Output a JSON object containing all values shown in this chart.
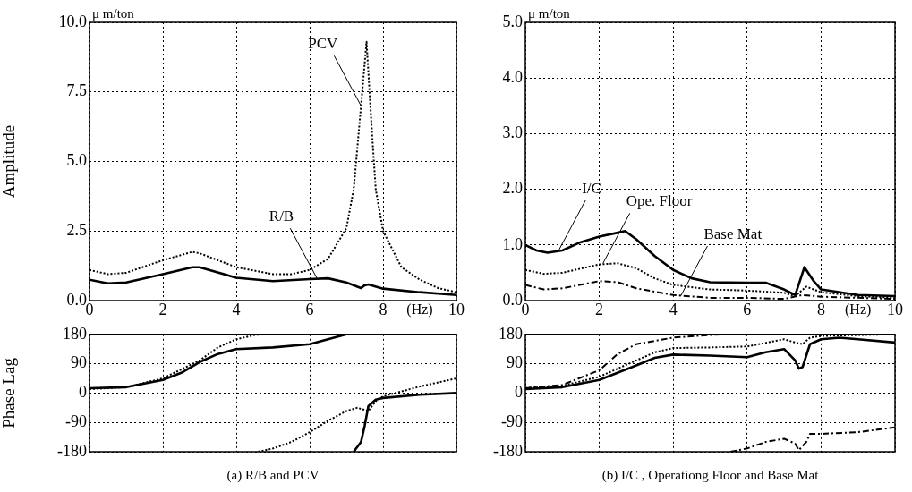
{
  "chart_data": [
    {
      "type": "line",
      "ylabel": "Amplitude",
      "xlabel": "(Hz)",
      "xlim": [
        0,
        10
      ],
      "xticks": [
        0,
        2,
        4,
        6,
        8,
        10
      ],
      "ylim": [
        0,
        10
      ],
      "yticks": [
        {
          "value": 0,
          "label": "0.0"
        },
        {
          "value": 2.5,
          "label": "2.5"
        },
        {
          "value": 5,
          "label": "5.0"
        },
        {
          "value": 7.5,
          "label": "7.5"
        },
        {
          "value": 10,
          "label": "10.0"
        }
      ],
      "grid": true,
      "marker": "none",
      "annotations": [
        "μ m/ton",
        {
          "text": "PCV",
          "x": 7.4,
          "y": 7
        },
        {
          "text": "R/B",
          "x": 6.2,
          "y": 0.8
        }
      ],
      "series": [
        {
          "color": "#000000",
          "line_style": "solid",
          "x": [
            0,
            0.5,
            1,
            2,
            2.8,
            3,
            4,
            5,
            6,
            6.5,
            7,
            7.3,
            7.4,
            7.5,
            7.6,
            8,
            9,
            10
          ],
          "values": [
            0.75,
            0.62,
            0.65,
            0.95,
            1.2,
            1.2,
            0.82,
            0.7,
            0.77,
            0.8,
            0.65,
            0.5,
            0.45,
            0.55,
            0.58,
            0.43,
            0.3,
            0.2
          ]
        },
        {
          "color": "#000000",
          "line_style": "dotted",
          "x": [
            0,
            0.5,
            1,
            2,
            2.8,
            3,
            4,
            5,
            5.5,
            6,
            6.5,
            7,
            7.2,
            7.4,
            7.55,
            7.7,
            7.8,
            8,
            8.5,
            9,
            9.5,
            10
          ],
          "values": [
            1.1,
            0.95,
            1.0,
            1.45,
            1.75,
            1.7,
            1.2,
            0.95,
            0.95,
            1.1,
            1.5,
            2.6,
            4,
            7,
            9.3,
            6,
            4,
            2.5,
            1.2,
            0.75,
            0.45,
            0.3
          ]
        }
      ]
    },
    {
      "type": "line",
      "xlabel": "(Hz)",
      "xlim": [
        0,
        10
      ],
      "xticks": [
        0,
        2,
        4,
        6,
        8,
        10
      ],
      "ylim": [
        0,
        5
      ],
      "yticks": [
        {
          "value": 0,
          "label": "0.0"
        },
        {
          "value": 1,
          "label": "1.0"
        },
        {
          "value": 2,
          "label": "2.0"
        },
        {
          "value": 3,
          "label": "3.0"
        },
        {
          "value": 4,
          "label": "4.0"
        },
        {
          "value": 5,
          "label": "5.0"
        }
      ],
      "grid": true,
      "marker": "none",
      "annotations": [
        "μ m/ton",
        {
          "text": "I/C",
          "x": 0.9,
          "y": 0.9
        },
        {
          "text": "Ope. Floor",
          "x": 2.1,
          "y": 0.67
        },
        {
          "text": "Base Mat",
          "x": 4.2,
          "y": 0.08
        }
      ],
      "series": [
        {
          "color": "#000000",
          "line_style": "solid",
          "x": [
            0,
            0.3,
            0.6,
            1,
            1.5,
            2,
            2.5,
            2.7,
            3,
            3.5,
            4,
            4.5,
            5,
            6,
            6.5,
            7,
            7.3,
            7.4,
            7.55,
            7.8,
            8,
            9,
            10
          ],
          "values": [
            1.0,
            0.9,
            0.86,
            0.9,
            1.05,
            1.15,
            1.22,
            1.25,
            1.1,
            0.8,
            0.55,
            0.4,
            0.33,
            0.32,
            0.32,
            0.2,
            0.1,
            0.3,
            0.6,
            0.35,
            0.2,
            0.1,
            0.08
          ]
        },
        {
          "color": "#000000",
          "line_style": "dotted",
          "x": [
            0,
            0.5,
            1,
            2,
            2.5,
            3,
            3.5,
            4,
            5,
            6,
            7,
            7.3,
            7.6,
            8,
            9,
            10
          ],
          "values": [
            0.55,
            0.48,
            0.5,
            0.65,
            0.67,
            0.58,
            0.4,
            0.28,
            0.2,
            0.18,
            0.14,
            0.08,
            0.25,
            0.15,
            0.08,
            0.05
          ]
        },
        {
          "color": "#000000",
          "line_style": "dashed",
          "x": [
            0,
            0.5,
            1,
            2,
            2.5,
            3,
            4,
            5,
            6,
            7,
            7.5,
            8,
            10
          ],
          "values": [
            0.28,
            0.2,
            0.22,
            0.35,
            0.33,
            0.22,
            0.1,
            0.05,
            0.05,
            0.03,
            0.1,
            0.07,
            0.03
          ]
        }
      ]
    },
    {
      "type": "line",
      "ylabel": "Phase Lag",
      "xlim": [
        0,
        10
      ],
      "xticks": [
        0,
        2,
        4,
        6,
        8,
        10
      ],
      "ylim": [
        -180,
        180
      ],
      "yticks": [
        -180,
        -90,
        0,
        90,
        180
      ],
      "grid": true,
      "marker": "none",
      "tick_labels": "y",
      "annotations": [
        "(a) R/B and PCV"
      ],
      "series": [
        {
          "color": "#000000",
          "line_style": "solid",
          "x": [
            0,
            1,
            2,
            2.5,
            3,
            3.5,
            4,
            5,
            6,
            6.5,
            7,
            7.1,
            7.2,
            7.4,
            7.5,
            7.6,
            7.8,
            8,
            9,
            10
          ],
          "values": [
            15,
            18,
            40,
            62,
            95,
            120,
            135,
            140,
            150,
            165,
            180,
            null,
            -180,
            -150,
            -100,
            -40,
            -20,
            -15,
            -5,
            0
          ]
        },
        {
          "color": "#000000",
          "line_style": "dotted",
          "x": [
            0,
            1,
            2,
            3,
            3.5,
            4,
            4.5,
            4.7,
            4.65,
            4.6,
            5,
            5.5,
            6,
            6.5,
            7,
            7.3,
            7.6,
            7.8,
            8,
            9,
            10
          ],
          "values": [
            12,
            18,
            45,
            100,
            140,
            165,
            178,
            180,
            null,
            -180,
            -170,
            -150,
            -120,
            -85,
            -55,
            -45,
            -55,
            -25,
            -10,
            20,
            45
          ]
        }
      ]
    },
    {
      "type": "line",
      "xlim": [
        0,
        10
      ],
      "xticks": [
        0,
        2,
        4,
        6,
        8,
        10
      ],
      "ylim": [
        -180,
        180
      ],
      "yticks": [
        -180,
        -90,
        0,
        90,
        180
      ],
      "grid": true,
      "marker": "none",
      "tick_labels": "y",
      "annotations": [
        "(b) I/C , Operationg Floor and Base Mat"
      ],
      "series": [
        {
          "color": "#000000",
          "line_style": "solid",
          "x": [
            0,
            1,
            2,
            3,
            3.5,
            4,
            5,
            6,
            6.5,
            7,
            7.3,
            7.4,
            7.5,
            7.7,
            8,
            8.5,
            9,
            10
          ],
          "values": [
            12,
            18,
            40,
            85,
            108,
            118,
            115,
            110,
            125,
            135,
            100,
            75,
            80,
            150,
            165,
            170,
            165,
            155
          ]
        },
        {
          "color": "#000000",
          "line_style": "dotted",
          "x": [
            0,
            1,
            2,
            3,
            3.5,
            4,
            5,
            6,
            7,
            7.3,
            7.5,
            7.7,
            8,
            9,
            10
          ],
          "values": [
            15,
            22,
            50,
            100,
            125,
            138,
            140,
            143,
            165,
            155,
            150,
            170,
            175,
            178,
            180
          ]
        },
        {
          "color": "#000000",
          "line_style": "dashed",
          "x": [
            0,
            1,
            2,
            2.5,
            3,
            4,
            5,
            5.5,
            5.52,
            5.55,
            6,
            6.5,
            7,
            7.3,
            7.4,
            7.6,
            7.7,
            8,
            9,
            10
          ],
          "values": [
            15,
            25,
            70,
            120,
            150,
            170,
            178,
            180,
            null,
            -180,
            -170,
            -150,
            -140,
            -155,
            -175,
            -150,
            -125,
            -125,
            -120,
            -105
          ]
        }
      ]
    }
  ]
}
